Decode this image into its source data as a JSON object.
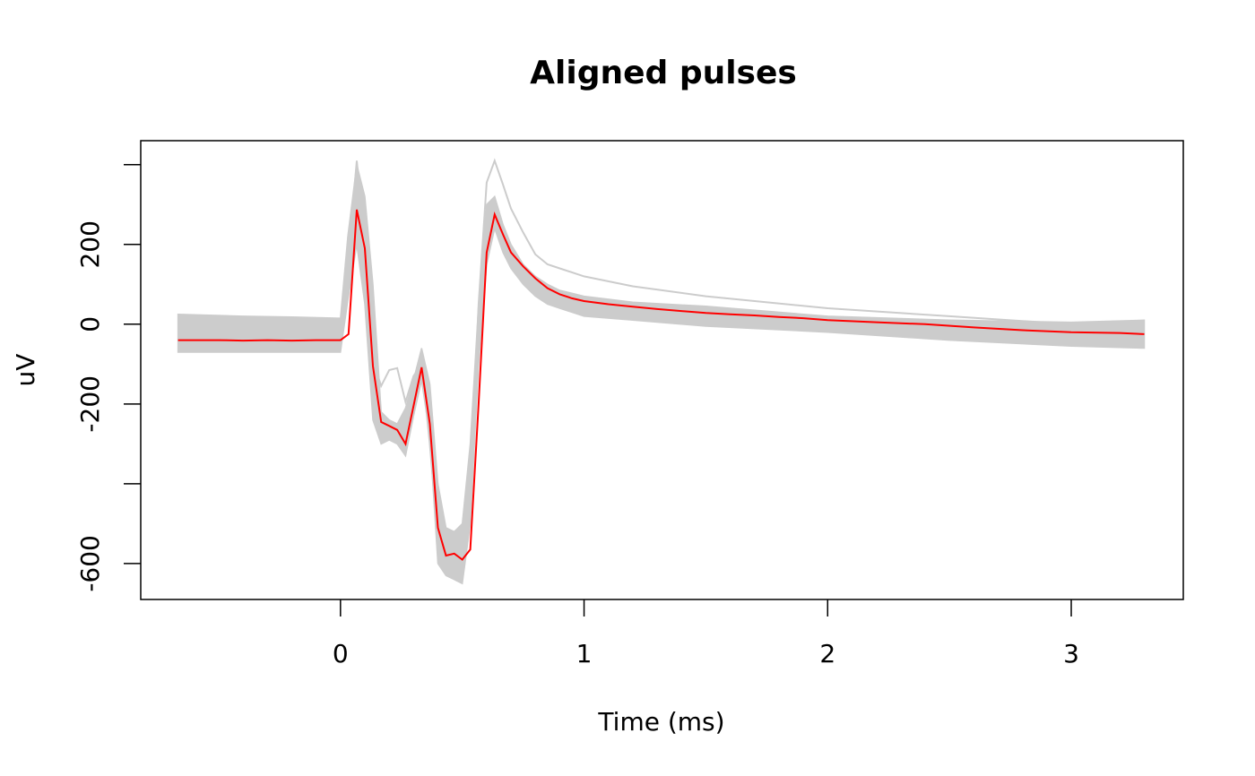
{
  "chart_data": {
    "type": "line",
    "title": "Aligned pulses",
    "xlabel": "Time (ms)",
    "ylabel": "uV",
    "xlim": [
      -0.82,
      3.46
    ],
    "ylim": [
      -690,
      460
    ],
    "x_ticks": [
      0,
      1,
      2,
      3
    ],
    "x_tick_labels": [
      "0",
      "1",
      "2",
      "3"
    ],
    "y_ticks": [
      -600,
      -400,
      -200,
      0,
      200,
      400
    ],
    "y_tick_labels": [
      "-600",
      "",
      "-200",
      "0",
      "200",
      ""
    ],
    "grid": false,
    "legend": "none",
    "colors": {
      "individual_pulses": "#cccccc",
      "mean_pulse": "#ff0000",
      "frame": "#000000"
    },
    "band": {
      "x": [
        -0.667,
        -0.4,
        -0.2,
        0.0,
        0.03,
        0.067,
        0.1,
        0.133,
        0.167,
        0.2,
        0.233,
        0.267,
        0.3,
        0.333,
        0.367,
        0.4,
        0.433,
        0.467,
        0.5,
        0.533,
        0.567,
        0.6,
        0.633,
        0.667,
        0.7,
        0.75,
        0.8,
        0.85,
        0.9,
        1.0,
        1.2,
        1.5,
        2.0,
        2.5,
        3.0,
        3.3
      ],
      "upper": [
        25,
        20,
        18,
        15,
        220,
        400,
        320,
        100,
        -220,
        -240,
        -250,
        -210,
        -140,
        -60,
        -150,
        -400,
        -510,
        -520,
        -500,
        -300,
        50,
        300,
        320,
        250,
        200,
        150,
        120,
        100,
        85,
        70,
        55,
        45,
        20,
        10,
        5,
        10
      ],
      "lower": [
        -70,
        -70,
        -70,
        -70,
        60,
        200,
        50,
        -240,
        -300,
        -290,
        -300,
        -330,
        -230,
        -140,
        -280,
        -600,
        -630,
        -640,
        -650,
        -500,
        -100,
        150,
        240,
        180,
        140,
        100,
        70,
        50,
        40,
        20,
        10,
        -5,
        -20,
        -40,
        -55,
        -60
      ]
    },
    "series": [
      {
        "x": [
          -0.667,
          -0.5,
          -0.4,
          -0.3,
          -0.2,
          -0.1,
          0.0,
          0.033,
          0.067,
          0.1,
          0.133,
          0.167,
          0.2,
          0.233,
          0.267,
          0.3,
          0.333,
          0.367,
          0.4,
          0.433,
          0.467,
          0.5,
          0.533,
          0.567,
          0.6,
          0.633,
          0.667,
          0.7,
          0.75,
          0.8,
          0.85,
          0.9,
          0.95,
          1.0,
          1.1,
          1.2,
          1.3,
          1.4,
          1.5,
          1.6,
          1.7,
          1.8,
          1.9,
          2.0,
          2.2,
          2.4,
          2.6,
          2.8,
          3.0,
          3.2,
          3.3
        ],
        "values": [
          -40,
          -40,
          -41,
          -40,
          -41,
          -40,
          -40,
          -25,
          287,
          190,
          -105,
          -245,
          -255,
          -265,
          -300,
          -205,
          -108,
          -250,
          -510,
          -580,
          -575,
          -590,
          -565,
          -200,
          180,
          275,
          225,
          180,
          145,
          115,
          90,
          75,
          65,
          58,
          50,
          44,
          38,
          33,
          28,
          25,
          22,
          18,
          15,
          10,
          5,
          0,
          -8,
          -15,
          -20,
          -22,
          -25
        ]
      },
      {
        "x": [
          -0.667,
          -0.4,
          -0.2,
          0.0,
          0.03,
          0.067,
          0.1,
          0.133,
          0.167,
          0.2,
          0.233,
          0.267,
          0.3,
          0.333,
          0.367,
          0.4,
          0.433,
          0.467,
          0.5,
          0.533,
          0.567,
          0.6,
          0.633,
          0.667,
          0.7,
          0.75,
          0.8,
          0.85,
          0.9,
          1.0,
          1.2,
          1.5,
          2.0,
          2.5,
          3.0,
          3.3
        ],
        "values": [
          -45,
          -50,
          -48,
          -45,
          150,
          410,
          200,
          -90,
          -155,
          -115,
          -110,
          -195,
          -130,
          -100,
          -300,
          -540,
          -560,
          -555,
          -560,
          -420,
          50,
          355,
          410,
          350,
          290,
          230,
          175,
          150,
          140,
          120,
          95,
          70,
          40,
          20,
          0,
          -5
        ]
      }
    ]
  }
}
